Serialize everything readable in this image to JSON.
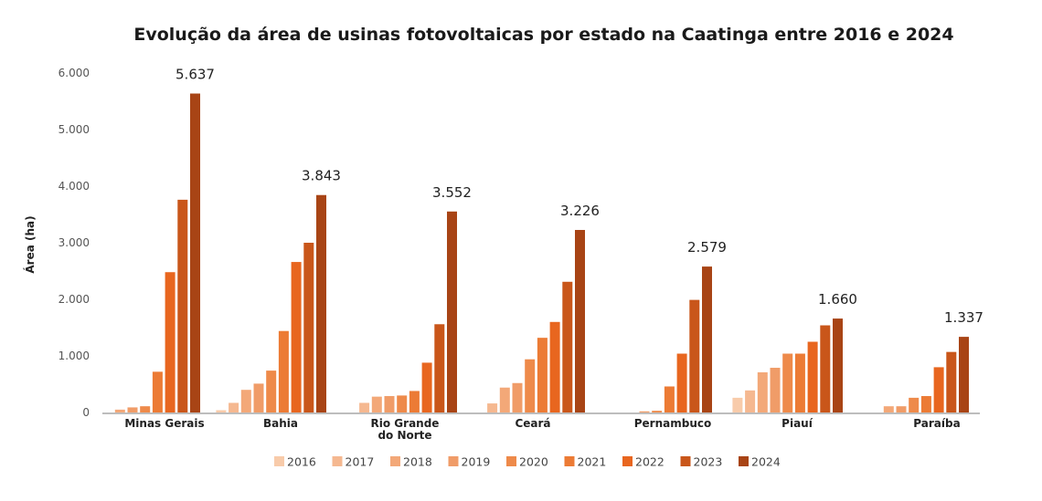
{
  "chart_data": {
    "type": "bar",
    "title": "Evolução da área de usinas fotovoltaicas por estado na Caatinga  entre 2016 e 2024",
    "xlabel": "",
    "ylabel": "Área (ha)",
    "ylim": [
      0,
      6000
    ],
    "yticks": [
      0,
      1000,
      2000,
      3000,
      4000,
      5000,
      6000
    ],
    "ytick_labels": [
      "0",
      "1.000",
      "2.000",
      "3.000",
      "4.000",
      "5.000",
      "6.000"
    ],
    "grid": false,
    "legend_position": "bottom",
    "categories": [
      [
        "Minas Gerais"
      ],
      [
        "Bahia"
      ],
      [
        "Rio Grande",
        "do Norte"
      ],
      [
        "Ceará"
      ],
      [
        "Pernambuco"
      ],
      [
        "Piauí"
      ],
      [
        "Paraíba"
      ]
    ],
    "series": [
      {
        "name": "2016",
        "color": "#f8cbaa",
        "values": [
          0,
          40,
          0,
          0,
          0,
          260,
          0
        ]
      },
      {
        "name": "2017",
        "color": "#f5b890",
        "values": [
          0,
          170,
          170,
          160,
          0,
          390,
          0
        ]
      },
      {
        "name": "2018",
        "color": "#f3a878",
        "values": [
          50,
          400,
          280,
          440,
          0,
          710,
          110
        ]
      },
      {
        "name": "2019",
        "color": "#f09c68",
        "values": [
          90,
          510,
          290,
          520,
          20,
          790,
          110
        ]
      },
      {
        "name": "2020",
        "color": "#ee8a4a",
        "values": [
          110,
          740,
          300,
          940,
          30,
          1040,
          260
        ]
      },
      {
        "name": "2021",
        "color": "#ec7b35",
        "values": [
          720,
          1440,
          380,
          1320,
          460,
          1040,
          290
        ]
      },
      {
        "name": "2022",
        "color": "#e8661f",
        "values": [
          2480,
          2660,
          880,
          1600,
          1040,
          1250,
          800
        ]
      },
      {
        "name": "2023",
        "color": "#c9561a",
        "values": [
          3760,
          3000,
          1560,
          2310,
          1990,
          1540,
          1070
        ]
      },
      {
        "name": "2024",
        "color": "#a84415",
        "values": [
          5637,
          3843,
          3552,
          3226,
          2579,
          1660,
          1337
        ]
      }
    ],
    "data_labels": [
      "5.637",
      "3.843",
      "3.552",
      "3.226",
      "2.579",
      "1.660",
      "1.337"
    ]
  }
}
